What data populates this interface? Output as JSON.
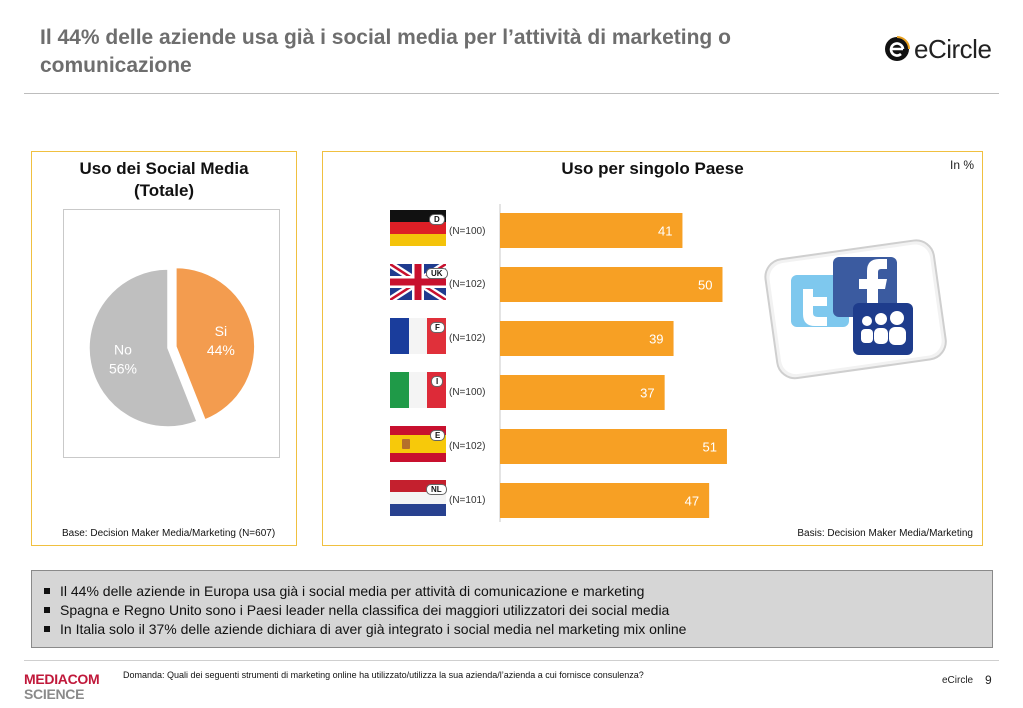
{
  "header": {
    "title": "Il 44% delle aziende usa già i social media per l’attività di marketing o comunicazione",
    "brand_logo": "eCircle"
  },
  "left_panel": {
    "title_line1": "Uso dei Social Media",
    "title_line2": "(Totale)",
    "basis": "Base: Decision Maker Media/Marketing (N=607)"
  },
  "right_panel": {
    "title": "Uso per singolo Paese",
    "unit": "In %",
    "basis": "Basis: Decision Maker Media/Marketing"
  },
  "chart_data": [
    {
      "type": "pie",
      "title": "Uso dei Social Media (Totale)",
      "slices": [
        {
          "label": "Si",
          "value": 44,
          "value_label": "44%",
          "color": "#f39c4f"
        },
        {
          "label": "No",
          "value": 56,
          "value_label": "56%",
          "color": "#bfbfbf"
        }
      ]
    },
    {
      "type": "bar",
      "orientation": "horizontal",
      "title": "Uso per singolo Paese",
      "unit": "In %",
      "categories": [
        "D",
        "UK",
        "F",
        "I",
        "E",
        "NL"
      ],
      "sample_sizes": [
        "(N=100)",
        "(N=102)",
        "(N=102)",
        "(N=100)",
        "(N=102)",
        "(N=101)"
      ],
      "values": [
        41,
        50,
        39,
        37,
        51,
        47
      ],
      "xlim": [
        0,
        100
      ],
      "bar_color": "#f7a024"
    }
  ],
  "flags": [
    "germany-flag",
    "uk-flag",
    "france-flag",
    "italy-flag",
    "spain-flag",
    "netherlands-flag"
  ],
  "summary": {
    "bullets": [
      "Il 44% delle aziende in Europa usa già i social media per attività di comunicazione e marketing",
      "Spagna e Regno Unito sono i Paesi leader nella classifica dei maggiori utilizzatori dei social media",
      "In Italia solo il 37% delle aziende dichiara di aver già integrato i social media nel marketing mix online"
    ]
  },
  "footer": {
    "logo_line1": "MEDIACOM",
    "logo_line2": "SCIENCE",
    "question": "Domanda: Quali dei seguenti strumenti di marketing online ha utilizzato/utilizza la sua azienda/l’azienda a cui fornisce consulenza?",
    "brand": "eCircle",
    "page_number": "9"
  }
}
